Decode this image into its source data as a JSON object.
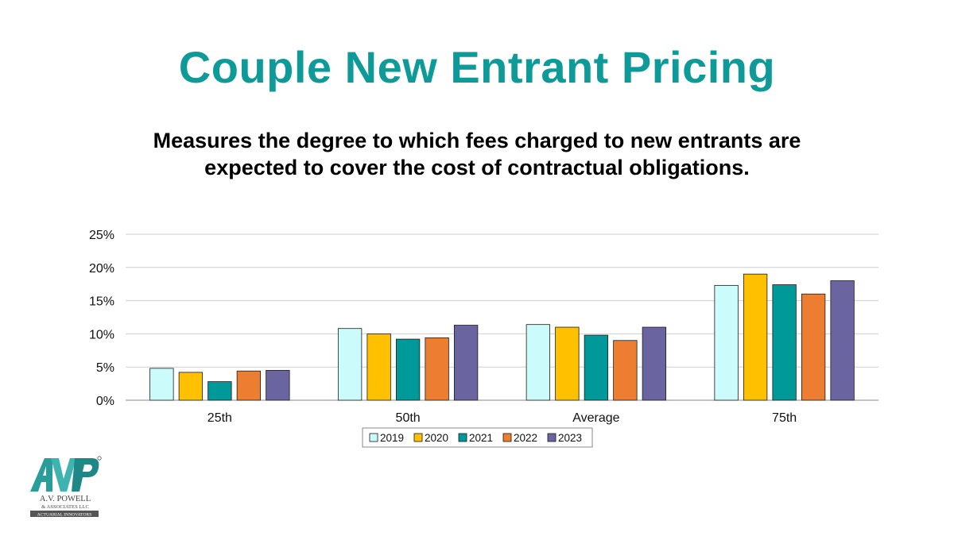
{
  "slide": {
    "title": "Couple New Entrant Pricing",
    "subtitle_lines": [
      "Measures the degree to which fees charged to new entrants are",
      "expected to cover the cost of contractual obligations."
    ]
  },
  "logo": {
    "text_line1": "A.V. POWELL",
    "text_line2": "& ASSOCIATES LLC",
    "text_line3": "ACTUARIAL INNOVATORS",
    "primary_color": "#2a9d9b"
  },
  "chart_data": {
    "type": "bar",
    "categories": [
      "25th",
      "50th",
      "Average",
      "75th"
    ],
    "series": [
      {
        "name": "2019",
        "values": [
          4.8,
          10.8,
          11.4,
          17.3
        ],
        "color": "#ccfbfb"
      },
      {
        "name": "2020",
        "values": [
          4.2,
          10.0,
          11.0,
          19.0
        ],
        "color": "#ffc000"
      },
      {
        "name": "2021",
        "values": [
          2.8,
          9.2,
          9.8,
          17.4
        ],
        "color": "#009999"
      },
      {
        "name": "2022",
        "values": [
          4.4,
          9.4,
          9.0,
          16.0
        ],
        "color": "#ed7d31"
      },
      {
        "name": "2023",
        "values": [
          4.5,
          11.3,
          11.0,
          18.0
        ],
        "color": "#6a64a0"
      }
    ],
    "y_ticks": [
      "0%",
      "5%",
      "10%",
      "15%",
      "20%",
      "25%"
    ],
    "ylim": [
      0,
      25
    ],
    "y_unit": "%",
    "grid": true,
    "legend_position": "bottom"
  }
}
